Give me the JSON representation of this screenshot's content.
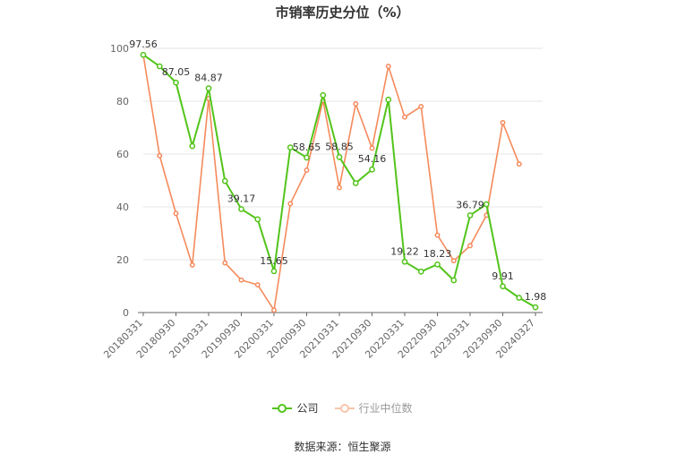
{
  "chart_data": {
    "type": "line",
    "title": "市销率历史分位（%）",
    "x": [
      "20180331",
      "20180630",
      "20180930",
      "20181231",
      "20190331",
      "20190630",
      "20190930",
      "20191231",
      "20200331",
      "20200630",
      "20200930",
      "20201231",
      "20210331",
      "20210630",
      "20210930",
      "20211231",
      "20220331",
      "20220630",
      "20220930",
      "20221231",
      "20230331",
      "20230630",
      "20230930",
      "20231231",
      "20240327"
    ],
    "x_tick_labels": [
      "20180331",
      "20180930",
      "20190331",
      "20190930",
      "20200331",
      "20200930",
      "20210331",
      "20210930",
      "20220331",
      "20220930",
      "20230331",
      "20230930",
      "20240327"
    ],
    "ylim": [
      0,
      100
    ],
    "y_ticks": [
      0,
      20,
      40,
      60,
      80,
      100
    ],
    "grid": true,
    "legend_position": "bottom",
    "series": [
      {
        "name": "公司",
        "color": "#52c41a",
        "values": [
          97.56,
          93.2,
          87.05,
          63.0,
          84.87,
          49.8,
          39.17,
          35.3,
          15.65,
          62.5,
          58.65,
          82.3,
          58.85,
          49.0,
          54.16,
          80.6,
          19.22,
          15.5,
          18.23,
          12.2,
          36.79,
          41.0,
          9.91,
          5.6,
          1.98
        ],
        "labels": [
          "97.56",
          "",
          "87.05",
          "",
          "84.87",
          "",
          "39.17",
          "",
          "15.65",
          "",
          "58.65",
          "",
          "58.85",
          "",
          "54.16",
          "",
          "19.22",
          "",
          "18.23",
          "",
          "36.79",
          "",
          "9.91",
          "",
          "1.98"
        ]
      },
      {
        "name": "行业中位数",
        "color": "#f58a5c",
        "values": [
          97.5,
          59.4,
          37.5,
          18.0,
          81.0,
          18.8,
          12.3,
          10.5,
          0.9,
          41.2,
          53.9,
          80.3,
          47.3,
          79.0,
          62.2,
          93.2,
          74.0,
          78.0,
          29.3,
          19.6,
          25.3,
          36.8,
          71.9,
          56.2,
          null
        ]
      }
    ],
    "legend": [
      {
        "name": "公司",
        "active": true
      },
      {
        "name": "行业中位数",
        "active": false
      }
    ],
    "source": "数据来源：恒生聚源"
  }
}
